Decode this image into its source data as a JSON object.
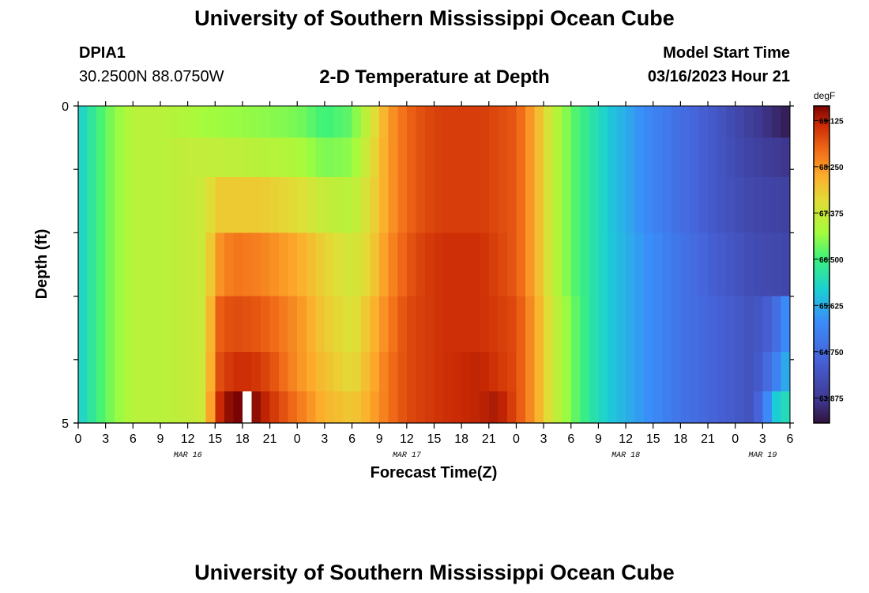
{
  "header": {
    "title": "University of Southern Mississippi Ocean Cube",
    "station_id": "DPIA1",
    "coordinates": "30.2500N  88.0750W",
    "chart_title": "2-D Temperature at Depth",
    "model_start_label": "Model Start Time",
    "model_start_value": "03/16/2023 Hour 21"
  },
  "footer": {
    "title": "University of Southern Mississippi Ocean Cube"
  },
  "chart_data": {
    "type": "heatmap",
    "title": "2-D Temperature at Depth",
    "xlabel": "Forecast Time(Z)",
    "ylabel": "Depth (ft)",
    "y_ticks": [
      "0",
      "5"
    ],
    "ylim": [
      0,
      5
    ],
    "x_hour_labels": [
      "0",
      "3",
      "6",
      "9",
      "12",
      "15",
      "18",
      "21",
      "0",
      "3",
      "6",
      "9",
      "12",
      "15",
      "18",
      "21",
      "0",
      "3",
      "6",
      "9",
      "12",
      "15",
      "18",
      "21",
      "0",
      "3",
      "6"
    ],
    "date_labels": [
      {
        "label": "MAR 16",
        "hours": 12
      },
      {
        "label": "MAR 17",
        "hours": 36
      },
      {
        "label": "MAR 18",
        "hours": 60
      },
      {
        "label": "MAR 19",
        "hours": 75
      }
    ],
    "time_hours_range": [
      0,
      78
    ],
    "colorbar": {
      "unit": "degF",
      "tick_labels": [
        "69.125",
        "68.250",
        "67.375",
        "66.500",
        "65.625",
        "64.750",
        "63.875"
      ],
      "range": [
        63.4,
        69.4
      ]
    },
    "depth_levels_ft": [
      0.25,
      0.75,
      1.5,
      2.5,
      3.5,
      4.25,
      4.75
    ],
    "series": [
      {
        "depth_ft": 0.25,
        "profile": [
          [
            0,
            65.9
          ],
          [
            3,
            66.7
          ],
          [
            6,
            67.2
          ],
          [
            9,
            67.2
          ],
          [
            12,
            67.1
          ],
          [
            14,
            67.0
          ],
          [
            20,
            66.9
          ],
          [
            24,
            66.8
          ],
          [
            27,
            66.5
          ],
          [
            30,
            66.7
          ],
          [
            32,
            67.4
          ],
          [
            34,
            68.2
          ],
          [
            36,
            68.6
          ],
          [
            38,
            68.8
          ],
          [
            40,
            68.9
          ],
          [
            44,
            68.9
          ],
          [
            48,
            68.7
          ],
          [
            50,
            68.1
          ],
          [
            52,
            67.3
          ],
          [
            54,
            66.7
          ],
          [
            56,
            66.3
          ],
          [
            58,
            65.9
          ],
          [
            62,
            65.3
          ],
          [
            66,
            64.8
          ],
          [
            70,
            64.4
          ],
          [
            74,
            63.9
          ],
          [
            78,
            63.5
          ]
        ]
      },
      {
        "depth_ft": 0.75,
        "profile": [
          [
            0,
            65.9
          ],
          [
            3,
            66.7
          ],
          [
            6,
            67.2
          ],
          [
            9,
            67.2
          ],
          [
            12,
            67.3
          ],
          [
            14,
            67.3
          ],
          [
            20,
            67.2
          ],
          [
            24,
            67.1
          ],
          [
            27,
            66.8
          ],
          [
            30,
            66.9
          ],
          [
            32,
            67.5
          ],
          [
            34,
            68.2
          ],
          [
            36,
            68.6
          ],
          [
            38,
            68.8
          ],
          [
            40,
            68.9
          ],
          [
            44,
            68.9
          ],
          [
            48,
            68.7
          ],
          [
            50,
            68.1
          ],
          [
            52,
            67.3
          ],
          [
            54,
            66.7
          ],
          [
            56,
            66.3
          ],
          [
            58,
            65.9
          ],
          [
            62,
            65.3
          ],
          [
            66,
            64.8
          ],
          [
            70,
            64.4
          ],
          [
            74,
            64.0
          ],
          [
            78,
            63.8
          ]
        ]
      },
      {
        "depth_ft": 1.5,
        "profile": [
          [
            0,
            65.9
          ],
          [
            3,
            66.7
          ],
          [
            6,
            67.2
          ],
          [
            9,
            67.2
          ],
          [
            12,
            67.3
          ],
          [
            14,
            67.4
          ],
          [
            15,
            67.8
          ],
          [
            20,
            67.8
          ],
          [
            24,
            67.6
          ],
          [
            27,
            67.3
          ],
          [
            30,
            67.2
          ],
          [
            32,
            67.6
          ],
          [
            34,
            68.2
          ],
          [
            36,
            68.6
          ],
          [
            38,
            68.8
          ],
          [
            40,
            68.9
          ],
          [
            44,
            68.9
          ],
          [
            48,
            68.7
          ],
          [
            50,
            68.1
          ],
          [
            52,
            67.3
          ],
          [
            54,
            66.7
          ],
          [
            56,
            66.3
          ],
          [
            58,
            65.9
          ],
          [
            62,
            65.3
          ],
          [
            66,
            64.8
          ],
          [
            70,
            64.4
          ],
          [
            74,
            64.1
          ],
          [
            78,
            64.0
          ]
        ]
      },
      {
        "depth_ft": 2.5,
        "profile": [
          [
            0,
            65.9
          ],
          [
            3,
            66.7
          ],
          [
            6,
            67.2
          ],
          [
            9,
            67.2
          ],
          [
            12,
            67.3
          ],
          [
            14,
            67.4
          ],
          [
            15,
            68.2
          ],
          [
            17,
            68.5
          ],
          [
            20,
            68.4
          ],
          [
            24,
            68.1
          ],
          [
            27,
            67.7
          ],
          [
            30,
            67.4
          ],
          [
            32,
            67.7
          ],
          [
            34,
            68.3
          ],
          [
            36,
            68.7
          ],
          [
            38,
            68.9
          ],
          [
            40,
            69.0
          ],
          [
            44,
            69.0
          ],
          [
            48,
            68.7
          ],
          [
            50,
            68.1
          ],
          [
            52,
            67.3
          ],
          [
            54,
            66.7
          ],
          [
            56,
            66.3
          ],
          [
            58,
            65.9
          ],
          [
            62,
            65.4
          ],
          [
            66,
            64.9
          ],
          [
            70,
            64.5
          ],
          [
            74,
            64.2
          ],
          [
            78,
            64.1
          ]
        ]
      },
      {
        "depth_ft": 3.5,
        "profile": [
          [
            0,
            65.9
          ],
          [
            3,
            66.7
          ],
          [
            6,
            67.2
          ],
          [
            9,
            67.2
          ],
          [
            12,
            67.3
          ],
          [
            14,
            67.4
          ],
          [
            15,
            68.6
          ],
          [
            17,
            68.8
          ],
          [
            20,
            68.7
          ],
          [
            24,
            68.3
          ],
          [
            27,
            67.8
          ],
          [
            30,
            67.5
          ],
          [
            32,
            67.9
          ],
          [
            34,
            68.4
          ],
          [
            36,
            68.8
          ],
          [
            38,
            68.9
          ],
          [
            40,
            69.0
          ],
          [
            44,
            69.0
          ],
          [
            48,
            68.8
          ],
          [
            50,
            68.2
          ],
          [
            52,
            67.4
          ],
          [
            54,
            66.8
          ],
          [
            56,
            66.3
          ],
          [
            58,
            65.9
          ],
          [
            62,
            65.4
          ],
          [
            66,
            64.9
          ],
          [
            70,
            64.6
          ],
          [
            74,
            64.3
          ],
          [
            76,
            64.6
          ],
          [
            78,
            65.5
          ]
        ]
      },
      {
        "depth_ft": 4.25,
        "profile": [
          [
            0,
            65.9
          ],
          [
            3,
            66.7
          ],
          [
            6,
            67.2
          ],
          [
            9,
            67.2
          ],
          [
            12,
            67.3
          ],
          [
            14,
            67.4
          ],
          [
            15,
            68.7
          ],
          [
            17,
            69.0
          ],
          [
            19,
            69.0
          ],
          [
            21,
            68.8
          ],
          [
            24,
            68.3
          ],
          [
            27,
            67.9
          ],
          [
            30,
            67.6
          ],
          [
            32,
            68.0
          ],
          [
            34,
            68.5
          ],
          [
            36,
            68.8
          ],
          [
            38,
            68.9
          ],
          [
            40,
            69.0
          ],
          [
            44,
            69.1
          ],
          [
            48,
            68.8
          ],
          [
            50,
            68.2
          ],
          [
            52,
            67.4
          ],
          [
            54,
            66.8
          ],
          [
            56,
            66.3
          ],
          [
            58,
            65.9
          ],
          [
            62,
            65.4
          ],
          [
            66,
            64.9
          ],
          [
            70,
            64.6
          ],
          [
            74,
            64.3
          ],
          [
            76,
            64.9
          ],
          [
            78,
            65.8
          ]
        ]
      },
      {
        "depth_ft": 4.75,
        "profile": [
          [
            0,
            65.9
          ],
          [
            3,
            66.7
          ],
          [
            6,
            67.2
          ],
          [
            9,
            67.2
          ],
          [
            12,
            67.3
          ],
          [
            14,
            67.4
          ],
          [
            15,
            68.9
          ],
          [
            16,
            69.2
          ],
          [
            17,
            69.4
          ],
          [
            19,
            69.4
          ],
          [
            21,
            69.0
          ],
          [
            24,
            68.5
          ],
          [
            27,
            68.0
          ],
          [
            30,
            67.8
          ],
          [
            32,
            68.1
          ],
          [
            34,
            68.5
          ],
          [
            36,
            68.8
          ],
          [
            38,
            68.9
          ],
          [
            40,
            69.0
          ],
          [
            44,
            69.1
          ],
          [
            46,
            69.2
          ],
          [
            48,
            68.8
          ],
          [
            50,
            68.2
          ],
          [
            52,
            67.4
          ],
          [
            54,
            66.8
          ],
          [
            56,
            66.3
          ],
          [
            58,
            65.9
          ],
          [
            62,
            65.4
          ],
          [
            66,
            64.9
          ],
          [
            70,
            64.6
          ],
          [
            74,
            64.3
          ],
          [
            76,
            65.6
          ],
          [
            77,
            66.2
          ],
          [
            78,
            66.0
          ]
        ]
      }
    ],
    "missing_cell": {
      "depth_ft": 4.75,
      "hour": 18
    }
  }
}
